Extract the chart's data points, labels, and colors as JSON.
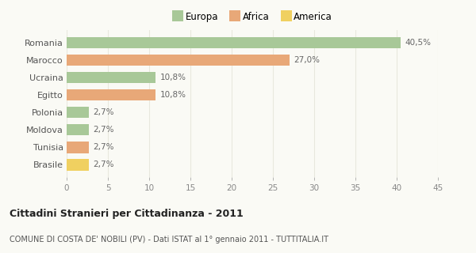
{
  "categories": [
    "Romania",
    "Marocco",
    "Ucraina",
    "Egitto",
    "Polonia",
    "Moldova",
    "Tunisia",
    "Brasile"
  ],
  "values": [
    40.5,
    27.0,
    10.8,
    10.8,
    2.7,
    2.7,
    2.7,
    2.7
  ],
  "colors": [
    "#a8c898",
    "#e8a878",
    "#a8c898",
    "#e8a878",
    "#a8c898",
    "#a8c898",
    "#e8a878",
    "#f0d060"
  ],
  "labels": [
    "40,5%",
    "27,0%",
    "10,8%",
    "10,8%",
    "2,7%",
    "2,7%",
    "2,7%",
    "2,7%"
  ],
  "legend_labels": [
    "Europa",
    "Africa",
    "America"
  ],
  "legend_colors": [
    "#a8c898",
    "#e8a878",
    "#f0d060"
  ],
  "title": "Cittadini Stranieri per Cittadinanza - 2011",
  "subtitle": "COMUNE DI COSTA DE' NOBILI (PV) - Dati ISTAT al 1° gennaio 2011 - TUTTITALIA.IT",
  "xlim": [
    0,
    45
  ],
  "xticks": [
    0,
    5,
    10,
    15,
    20,
    25,
    30,
    35,
    40,
    45
  ],
  "background_color": "#fafaf5",
  "grid_color": "#e8e8de"
}
